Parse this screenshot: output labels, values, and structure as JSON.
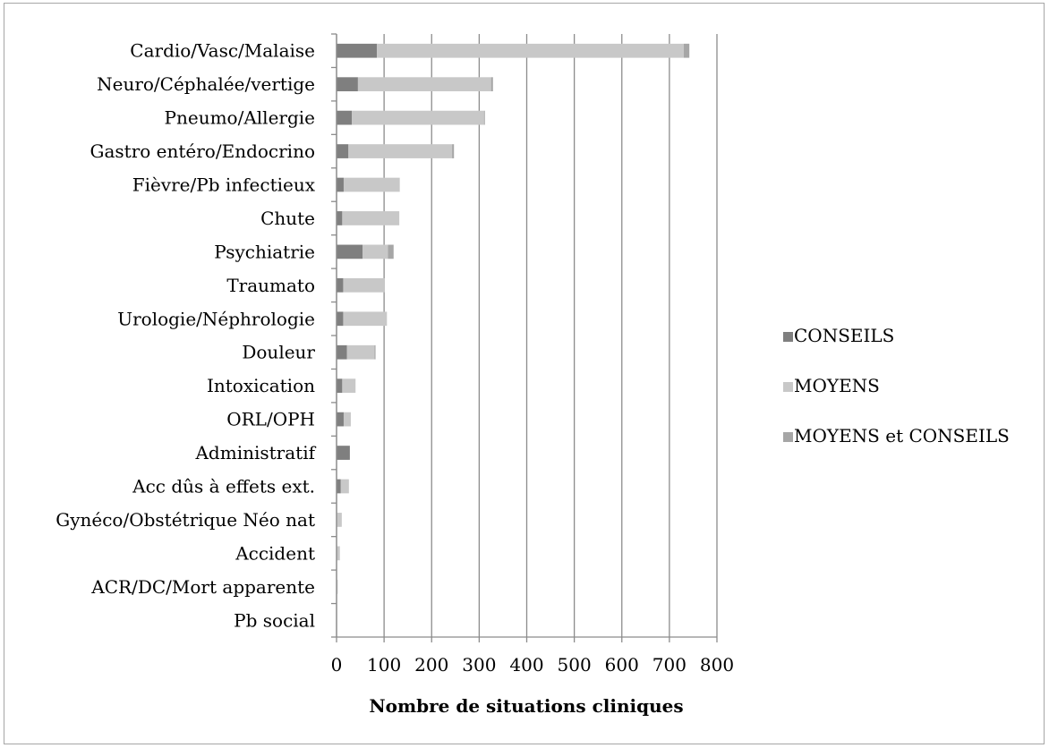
{
  "chart_data": {
    "type": "bar",
    "orientation": "horizontal",
    "stacked": true,
    "categories": [
      "Cardio/Vasc/Malaise",
      "Neuro/Céphalée/vertige",
      "Pneumo/Allergie",
      "Gastro entéro/Endocrino",
      "Fièvre/Pb infectieux",
      "Chute",
      "Psychiatrie",
      "Traumato",
      "Urologie/Néphrologie",
      "Douleur",
      "Intoxication",
      "ORL/OPH",
      "Administratif",
      "Acc dûs à effets ext.",
      "Gynéco/Obstétrique Néo nat",
      "Accident",
      "ACR/DC/Mort apparente",
      "Pb social"
    ],
    "series": [
      {
        "name": "CONSEILS",
        "color": "#7f7f7f",
        "values": [
          85,
          45,
          32,
          25,
          15,
          12,
          55,
          14,
          14,
          22,
          12,
          15,
          28,
          9,
          1,
          1,
          1,
          0
        ]
      },
      {
        "name": "MOYENS",
        "color": "#c8c8c8",
        "values": [
          645,
          280,
          278,
          218,
          118,
          120,
          53,
          87,
          92,
          58,
          28,
          15,
          0,
          17,
          10,
          6,
          1,
          0
        ]
      },
      {
        "name": "MOYENS et CONSEILS",
        "color": "#a6a6a6",
        "values": [
          12,
          4,
          2,
          4,
          0,
          0,
          12,
          0,
          0,
          2,
          0,
          0,
          0,
          0,
          0,
          0,
          0,
          0
        ]
      }
    ],
    "xlabel": "Nombre de situations cliniques",
    "ylabel": "",
    "xlim": [
      0,
      800
    ],
    "xticks": [
      "0",
      "100",
      "200",
      "300",
      "400",
      "500",
      "600",
      "700",
      "800"
    ],
    "grid": "vertical",
    "legend_position": "right"
  }
}
